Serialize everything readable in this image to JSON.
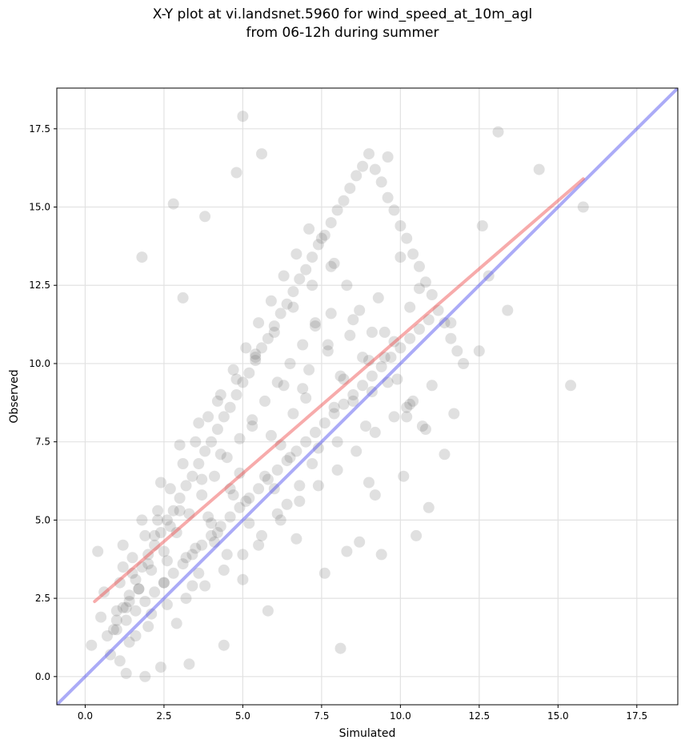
{
  "chart_data": {
    "type": "scatter",
    "title_line1": "X-Y plot at vi.landsnet.5960 for wind_speed_at_10m_agl",
    "title_line2": "from 06-12h during summer",
    "xlabel": "Simulated",
    "ylabel": "Observed",
    "xlim": [
      -0.9,
      18.8
    ],
    "ylim": [
      -0.9,
      18.8
    ],
    "xticks": [
      0.0,
      2.5,
      5.0,
      7.5,
      10.0,
      12.5,
      15.0,
      17.5
    ],
    "yticks": [
      0.0,
      2.5,
      5.0,
      7.5,
      10.0,
      12.5,
      15.0,
      17.5
    ],
    "xtick_labels": [
      "0.0",
      "2.5",
      "5.0",
      "7.5",
      "10.0",
      "12.5",
      "15.0",
      "17.5"
    ],
    "ytick_labels": [
      "0.0",
      "2.5",
      "5.0",
      "7.5",
      "10.0",
      "12.5",
      "15.0",
      "17.5"
    ],
    "grid": true,
    "point_color": "#555555",
    "regression_line": {
      "color": "#ee4444",
      "x": [
        0.3,
        15.8
      ],
      "y": [
        2.4,
        15.9
      ]
    },
    "identity_line": {
      "color": "#4444ee",
      "x": [
        -0.9,
        18.8
      ],
      "y": [
        -0.9,
        18.8
      ]
    },
    "points": {
      "x": [
        5.0,
        5.6,
        2.8,
        4.8,
        3.8,
        1.8,
        3.1,
        13.1,
        14.4,
        9.6,
        12.6,
        15.8,
        15.4,
        10.9,
        11.7,
        12.8,
        13.4,
        12.5,
        11.6,
        10.5,
        10.1,
        10.2,
        10.6,
        7.6,
        8.1,
        8.3,
        8.7,
        9.0,
        9.4,
        9.2,
        7.8,
        7.3,
        6.9,
        6.6,
        6.2,
        6.0,
        5.8,
        5.5,
        5.1,
        5.4,
        4.4,
        4.5,
        4.6,
        4.0,
        3.6,
        3.3,
        2.9,
        2.4,
        1.9,
        1.6,
        1.3,
        1.1,
        0.8,
        0.5,
        0.4,
        1.0,
        1.2,
        1.4,
        1.7,
        2.0,
        2.2,
        2.5,
        2.7,
        3.0,
        3.2,
        3.5,
        3.7,
        3.9,
        4.2,
        4.3,
        4.7,
        4.9,
        5.2,
        5.3,
        5.7,
        5.9,
        6.1,
        6.3,
        6.5,
        6.8,
        7.0,
        7.1,
        7.4,
        7.7,
        7.9,
        8.2,
        8.5,
        8.8,
        9.1,
        9.3,
        9.5,
        9.8,
        10.0,
        10.3,
        0.2,
        0.6,
        0.9,
        1.5,
        2.1,
        2.3,
        2.6,
        3.4,
        4.1,
        5.0,
        6.4,
        6.7,
        7.2,
        8.0,
        1.0,
        1.2,
        1.4,
        1.6,
        1.8,
        2.0,
        2.2,
        2.4,
        2.6,
        2.8,
        3.0,
        3.2,
        3.4,
        3.6,
        3.8,
        4.0,
        4.2,
        4.4,
        4.6,
        4.8,
        5.0,
        5.2,
        5.4,
        5.6,
        5.8,
        6.0,
        6.2,
        6.4,
        6.6,
        6.8,
        7.0,
        7.2,
        7.4,
        7.6,
        7.8,
        8.0,
        8.2,
        8.4,
        8.6,
        8.8,
        9.0,
        9.2,
        9.4,
        9.6,
        9.8,
        10.0,
        10.2,
        10.4,
        10.6,
        10.8,
        11.0,
        11.2,
        11.4,
        11.6,
        11.8,
        12.0,
        1.1,
        1.5,
        1.9,
        2.3,
        2.7,
        3.1,
        3.5,
        3.9,
        4.3,
        4.7,
        5.1,
        5.5,
        5.9,
        6.3,
        6.7,
        7.1,
        7.5,
        7.9,
        8.3,
        8.7,
        9.1,
        9.5,
        9.9,
        10.3,
        10.7,
        1.3,
        1.7,
        2.1,
        2.5,
        2.9,
        3.3,
        3.7,
        4.1,
        4.5,
        4.9,
        5.3,
        5.7,
        6.1,
        6.5,
        6.9,
        7.3,
        7.7,
        8.1,
        8.5,
        8.9,
        0.7,
        1.0,
        1.3,
        1.6,
        1.9,
        2.2,
        2.5,
        2.8,
        3.1,
        3.4,
        3.7,
        4.0,
        4.3,
        4.6,
        4.9,
        5.2,
        5.5,
        5.8,
        6.1,
        6.4,
        6.7,
        7.0,
        7.3,
        7.6,
        7.9,
        8.2,
        8.5,
        8.8,
        9.1,
        9.4,
        9.7,
        10.0,
        10.3,
        10.6,
        10.9,
        1.2,
        1.8,
        2.4,
        3.0,
        3.6,
        4.2,
        4.8,
        5.4,
        6.0,
        6.6,
        7.2,
        7.8,
        8.4,
        9.0,
        9.6,
        10.2,
        10.8,
        11.4,
        1.4,
        2.0,
        2.6,
        3.2,
        3.8,
        4.4,
        5.0,
        5.6,
        6.2,
        6.8,
        7.4,
        8.0,
        8.6,
        9.2,
        9.8,
        10.4,
        11.0
      ],
      "y": [
        17.9,
        16.7,
        15.1,
        16.1,
        14.7,
        13.4,
        12.1,
        17.4,
        16.2,
        16.6,
        14.4,
        15.0,
        9.3,
        5.4,
        8.4,
        12.8,
        11.7,
        10.4,
        11.3,
        4.5,
        6.4,
        8.3,
        12.4,
        3.3,
        0.9,
        4.0,
        4.3,
        6.2,
        3.9,
        5.8,
        13.1,
        11.3,
        9.2,
        8.4,
        7.4,
        6.0,
        2.1,
        4.2,
        5.6,
        10.2,
        1.0,
        3.9,
        6.0,
        4.9,
        3.3,
        0.4,
        1.7,
        0.3,
        0.0,
        1.3,
        0.1,
        0.5,
        0.7,
        1.9,
        4.0,
        2.1,
        3.5,
        2.4,
        2.8,
        3.6,
        4.5,
        3.0,
        4.8,
        5.3,
        3.8,
        4.1,
        6.3,
        5.1,
        4.6,
        7.1,
        5.8,
        6.5,
        4.9,
        8.0,
        6.4,
        7.7,
        5.2,
        9.3,
        7.0,
        6.1,
        8.9,
        9.8,
        7.3,
        10.6,
        8.6,
        9.5,
        11.4,
        10.2,
        9.1,
        12.1,
        11.0,
        10.7,
        13.4,
        11.8,
        1.0,
        2.7,
        1.5,
        3.3,
        2.0,
        5.0,
        3.7,
        2.9,
        4.3,
        3.1,
        5.5,
        4.4,
        6.8,
        7.5,
        1.8,
        2.2,
        2.6,
        3.1,
        3.5,
        3.9,
        4.2,
        4.6,
        5.0,
        5.3,
        5.7,
        6.1,
        6.4,
        6.8,
        7.2,
        7.5,
        7.9,
        8.3,
        8.6,
        9.0,
        9.4,
        9.7,
        10.1,
        10.5,
        10.8,
        11.2,
        11.6,
        11.9,
        12.3,
        12.7,
        13.0,
        13.4,
        13.8,
        14.1,
        14.5,
        14.9,
        15.2,
        15.6,
        16.0,
        16.3,
        16.7,
        16.2,
        15.8,
        15.3,
        14.9,
        14.4,
        14.0,
        13.5,
        13.1,
        12.6,
        12.2,
        11.7,
        11.3,
        10.8,
        10.4,
        10.0,
        3.0,
        3.8,
        4.5,
        5.3,
        6.0,
        6.8,
        7.5,
        8.3,
        9.0,
        9.8,
        10.5,
        11.3,
        12.0,
        12.8,
        13.5,
        14.3,
        14.0,
        13.2,
        12.5,
        11.7,
        11.0,
        10.2,
        9.5,
        8.7,
        8.0,
        2.2,
        2.8,
        3.4,
        4.0,
        4.6,
        5.2,
        5.8,
        6.4,
        7.0,
        7.6,
        8.2,
        8.8,
        9.4,
        10.0,
        10.6,
        11.2,
        10.4,
        9.6,
        8.8,
        8.0,
        1.3,
        1.5,
        1.8,
        2.1,
        2.4,
        2.7,
        3.0,
        3.3,
        3.6,
        3.9,
        4.2,
        4.5,
        4.8,
        5.1,
        5.4,
        5.7,
        6.0,
        6.3,
        6.6,
        6.9,
        7.2,
        7.5,
        7.8,
        8.1,
        8.4,
        8.7,
        9.0,
        9.3,
        9.6,
        9.9,
        10.2,
        10.5,
        10.8,
        11.1,
        11.4,
        4.2,
        5.0,
        6.2,
        7.4,
        8.1,
        8.8,
        9.5,
        10.3,
        11.0,
        11.8,
        12.5,
        11.6,
        10.9,
        10.1,
        9.4,
        8.6,
        7.9,
        7.1,
        1.1,
        1.6,
        2.3,
        2.5,
        2.9,
        3.4,
        3.9,
        4.5,
        5.0,
        5.6,
        6.1,
        6.6,
        7.2,
        7.8,
        8.3,
        8.8,
        9.3
      ]
    }
  }
}
